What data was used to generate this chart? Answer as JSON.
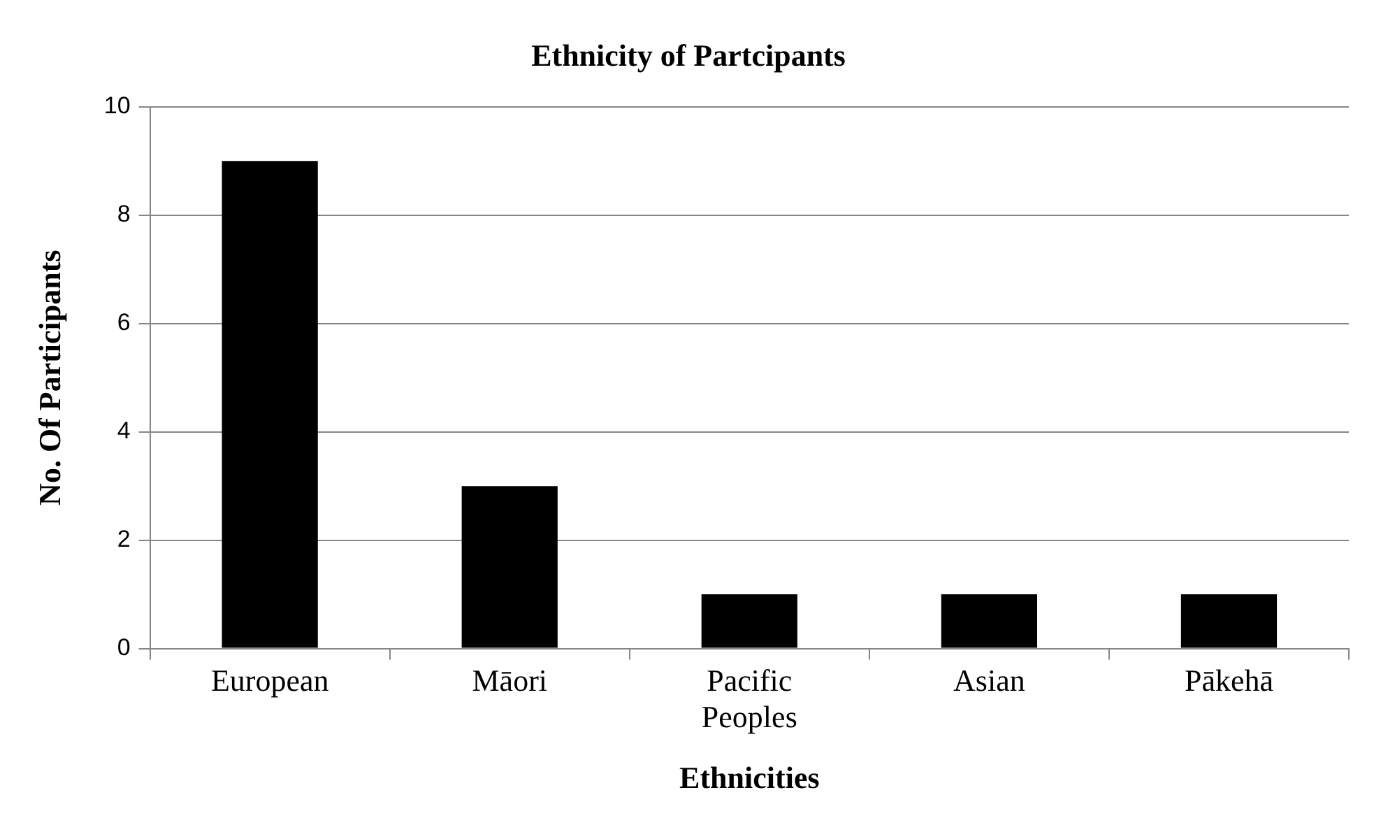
{
  "chart_data": {
    "type": "bar",
    "title": "Ethnicity of Partcipants",
    "xlabel": "Ethnicities",
    "ylabel": "No. Of Participants",
    "categories": [
      "European",
      "Māori",
      "Pacific Peoples",
      "Asian",
      "Pākehā"
    ],
    "values": [
      9,
      3,
      1,
      1,
      1
    ],
    "color": "#000000",
    "ylim": [
      0,
      10
    ],
    "yticks": [
      0,
      2,
      4,
      6,
      8,
      10
    ],
    "grid": "y",
    "legend": false
  }
}
